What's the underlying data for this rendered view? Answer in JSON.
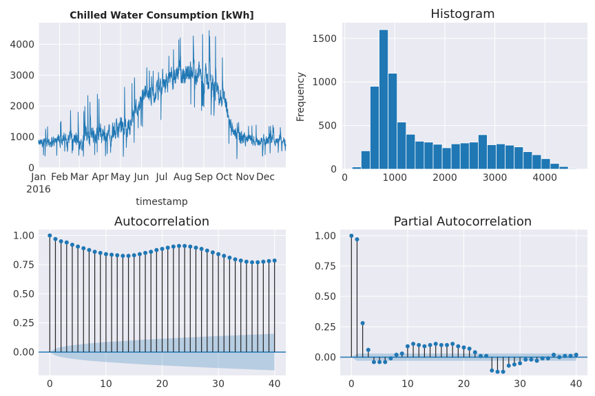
{
  "chart_data": [
    {
      "type": "line",
      "title": "Chilled Water Consumption [kWh]",
      "xlabel": "timestamp",
      "ylabel": "",
      "x_ticks": [
        "Jan\n2016",
        "Feb",
        "Mar",
        "Apr",
        "May",
        "Jun",
        "Jul",
        "Aug",
        "Sep",
        "Oct",
        "Nov",
        "Dec"
      ],
      "y_ticks": [
        0,
        1000,
        2000,
        3000,
        4000
      ],
      "ylim": [
        0,
        4700
      ],
      "xlim": [
        "2016-01-01",
        "2016-12-31"
      ],
      "color": "#1f77b4",
      "series": [
        {
          "x": [
            "2016-01-01",
            "2016-01-15",
            "2016-02-01",
            "2016-02-15",
            "2016-03-01",
            "2016-03-15",
            "2016-04-01",
            "2016-04-15",
            "2016-05-01",
            "2016-05-15",
            "2016-06-01",
            "2016-06-15",
            "2016-07-01",
            "2016-07-15",
            "2016-08-01",
            "2016-08-15",
            "2016-09-01",
            "2016-09-15",
            "2016-10-01",
            "2016-10-15",
            "2016-11-01",
            "2016-11-15",
            "2016-12-01",
            "2016-12-15",
            "2016-12-31"
          ],
          "mean": [
            750,
            800,
            850,
            950,
            800,
            1000,
            1050,
            1100,
            1150,
            1350,
            2400,
            2200,
            2600,
            2800,
            3000,
            3100,
            2900,
            2600,
            2100,
            1000,
            900,
            850,
            850,
            900,
            880
          ],
          "spread": [
            350,
            400,
            450,
            600,
            500,
            800,
            800,
            700,
            900,
            800,
            800,
            700,
            700,
            800,
            900,
            900,
            900,
            900,
            900,
            600,
            500,
            400,
            400,
            400,
            350
          ],
          "max": [
            1350,
            1400,
            1650,
            1900,
            1800,
            2600,
            2400,
            2400,
            2800,
            2600,
            3500,
            3200,
            3400,
            3800,
            4400,
            4600,
            4600,
            4500,
            3900,
            1600,
            1500,
            1400,
            1350,
            1450,
            1250
          ],
          "min": [
            300,
            350,
            400,
            450,
            400,
            300,
            300,
            350,
            300,
            500,
            1300,
            1300,
            1500,
            1700,
            1800,
            1900,
            1800,
            1500,
            1000,
            200,
            300,
            350,
            350,
            450,
            500
          ]
        }
      ]
    },
    {
      "type": "bar",
      "title": "Histogram",
      "xlabel": "",
      "ylabel": "Frequency",
      "x_ticks": [
        0,
        1000,
        2000,
        3000,
        4000
      ],
      "y_ticks": [
        0,
        500,
        1000,
        1500
      ],
      "xlim": [
        -50,
        4850
      ],
      "ylim": [
        0,
        1680
      ],
      "color": "#1f77b4",
      "bin_edges": [
        147,
        327,
        507,
        687,
        867,
        1047,
        1227,
        1407,
        1587,
        1767,
        1947,
        2127,
        2307,
        2487,
        2667,
        2847,
        3027,
        3207,
        3387,
        3567,
        3747,
        3927,
        4107,
        4287,
        4467,
        4647
      ],
      "values": [
        25,
        210,
        950,
        1600,
        1100,
        540,
        400,
        320,
        310,
        285,
        245,
        290,
        300,
        310,
        395,
        280,
        290,
        275,
        255,
        200,
        165,
        120,
        65,
        30,
        8
      ]
    },
    {
      "type": "scatter",
      "subtype": "stem",
      "title": "Autocorrelation",
      "xlabel": "",
      "ylabel": "",
      "x_ticks": [
        0,
        10,
        20,
        30,
        40
      ],
      "y_ticks": [
        0.0,
        0.25,
        0.5,
        0.75,
        1.0
      ],
      "y_tick_labels": [
        "0.00",
        "0.25",
        "0.50",
        "0.75",
        "1.00"
      ],
      "xlim": [
        -2,
        42
      ],
      "ylim": [
        -0.2,
        1.05
      ],
      "color": "#1f77b4",
      "lags": [
        0,
        1,
        2,
        3,
        4,
        5,
        6,
        7,
        8,
        9,
        10,
        11,
        12,
        13,
        14,
        15,
        16,
        17,
        18,
        19,
        20,
        21,
        22,
        23,
        24,
        25,
        26,
        27,
        28,
        29,
        30,
        31,
        32,
        33,
        34,
        35,
        36,
        37,
        38,
        39,
        40
      ],
      "values": [
        1.0,
        0.97,
        0.95,
        0.94,
        0.92,
        0.905,
        0.89,
        0.875,
        0.86,
        0.85,
        0.84,
        0.835,
        0.83,
        0.825,
        0.825,
        0.83,
        0.84,
        0.85,
        0.86,
        0.875,
        0.885,
        0.895,
        0.905,
        0.91,
        0.91,
        0.905,
        0.895,
        0.885,
        0.87,
        0.855,
        0.84,
        0.825,
        0.81,
        0.795,
        0.785,
        0.775,
        0.77,
        0.77,
        0.775,
        0.78,
        0.785
      ],
      "confint": [
        0.0,
        0.03,
        0.042,
        0.051,
        0.058,
        0.064,
        0.069,
        0.074,
        0.078,
        0.082,
        0.086,
        0.089,
        0.092,
        0.095,
        0.098,
        0.101,
        0.104,
        0.107,
        0.109,
        0.112,
        0.114,
        0.117,
        0.119,
        0.121,
        0.124,
        0.126,
        0.128,
        0.131,
        0.133,
        0.135,
        0.137,
        0.139,
        0.141,
        0.143,
        0.145,
        0.147,
        0.149,
        0.151,
        0.153,
        0.155,
        0.157
      ]
    },
    {
      "type": "scatter",
      "subtype": "stem",
      "title": "Partial Autocorrelation",
      "xlabel": "",
      "ylabel": "",
      "x_ticks": [
        0,
        10,
        20,
        30,
        40
      ],
      "y_ticks": [
        0.0,
        0.25,
        0.5,
        0.75,
        1.0
      ],
      "y_tick_labels": [
        "0.00",
        "0.25",
        "0.50",
        "0.75",
        "1.00"
      ],
      "xlim": [
        -2,
        42
      ],
      "ylim": [
        -0.15,
        1.05
      ],
      "color": "#1f77b4",
      "lags": [
        0,
        1,
        2,
        3,
        4,
        5,
        6,
        7,
        8,
        9,
        10,
        11,
        12,
        13,
        14,
        15,
        16,
        17,
        18,
        19,
        20,
        21,
        22,
        23,
        24,
        25,
        26,
        27,
        28,
        29,
        30,
        31,
        32,
        33,
        34,
        35,
        36,
        37,
        38,
        39,
        40
      ],
      "values": [
        1.0,
        0.97,
        0.28,
        0.06,
        -0.04,
        -0.04,
        -0.04,
        -0.01,
        0.02,
        0.03,
        0.09,
        0.11,
        0.1,
        0.09,
        0.1,
        0.11,
        0.1,
        0.1,
        0.11,
        0.09,
        0.08,
        0.07,
        0.04,
        0.01,
        0.01,
        -0.11,
        -0.12,
        -0.12,
        -0.07,
        -0.06,
        -0.05,
        -0.02,
        -0.02,
        -0.03,
        -0.01,
        -0.01,
        0.02,
        0.0,
        0.01,
        0.01,
        0.02
      ],
      "confint": [
        0.0,
        0.03,
        0.03,
        0.03,
        0.03,
        0.03,
        0.03,
        0.03,
        0.03,
        0.03,
        0.03,
        0.03,
        0.03,
        0.03,
        0.03,
        0.03,
        0.03,
        0.03,
        0.03,
        0.03,
        0.03,
        0.03,
        0.03,
        0.03,
        0.03,
        0.03,
        0.03,
        0.03,
        0.03,
        0.03,
        0.03,
        0.03,
        0.03,
        0.03,
        0.03,
        0.03,
        0.03,
        0.03,
        0.03,
        0.03,
        0.03
      ]
    }
  ]
}
